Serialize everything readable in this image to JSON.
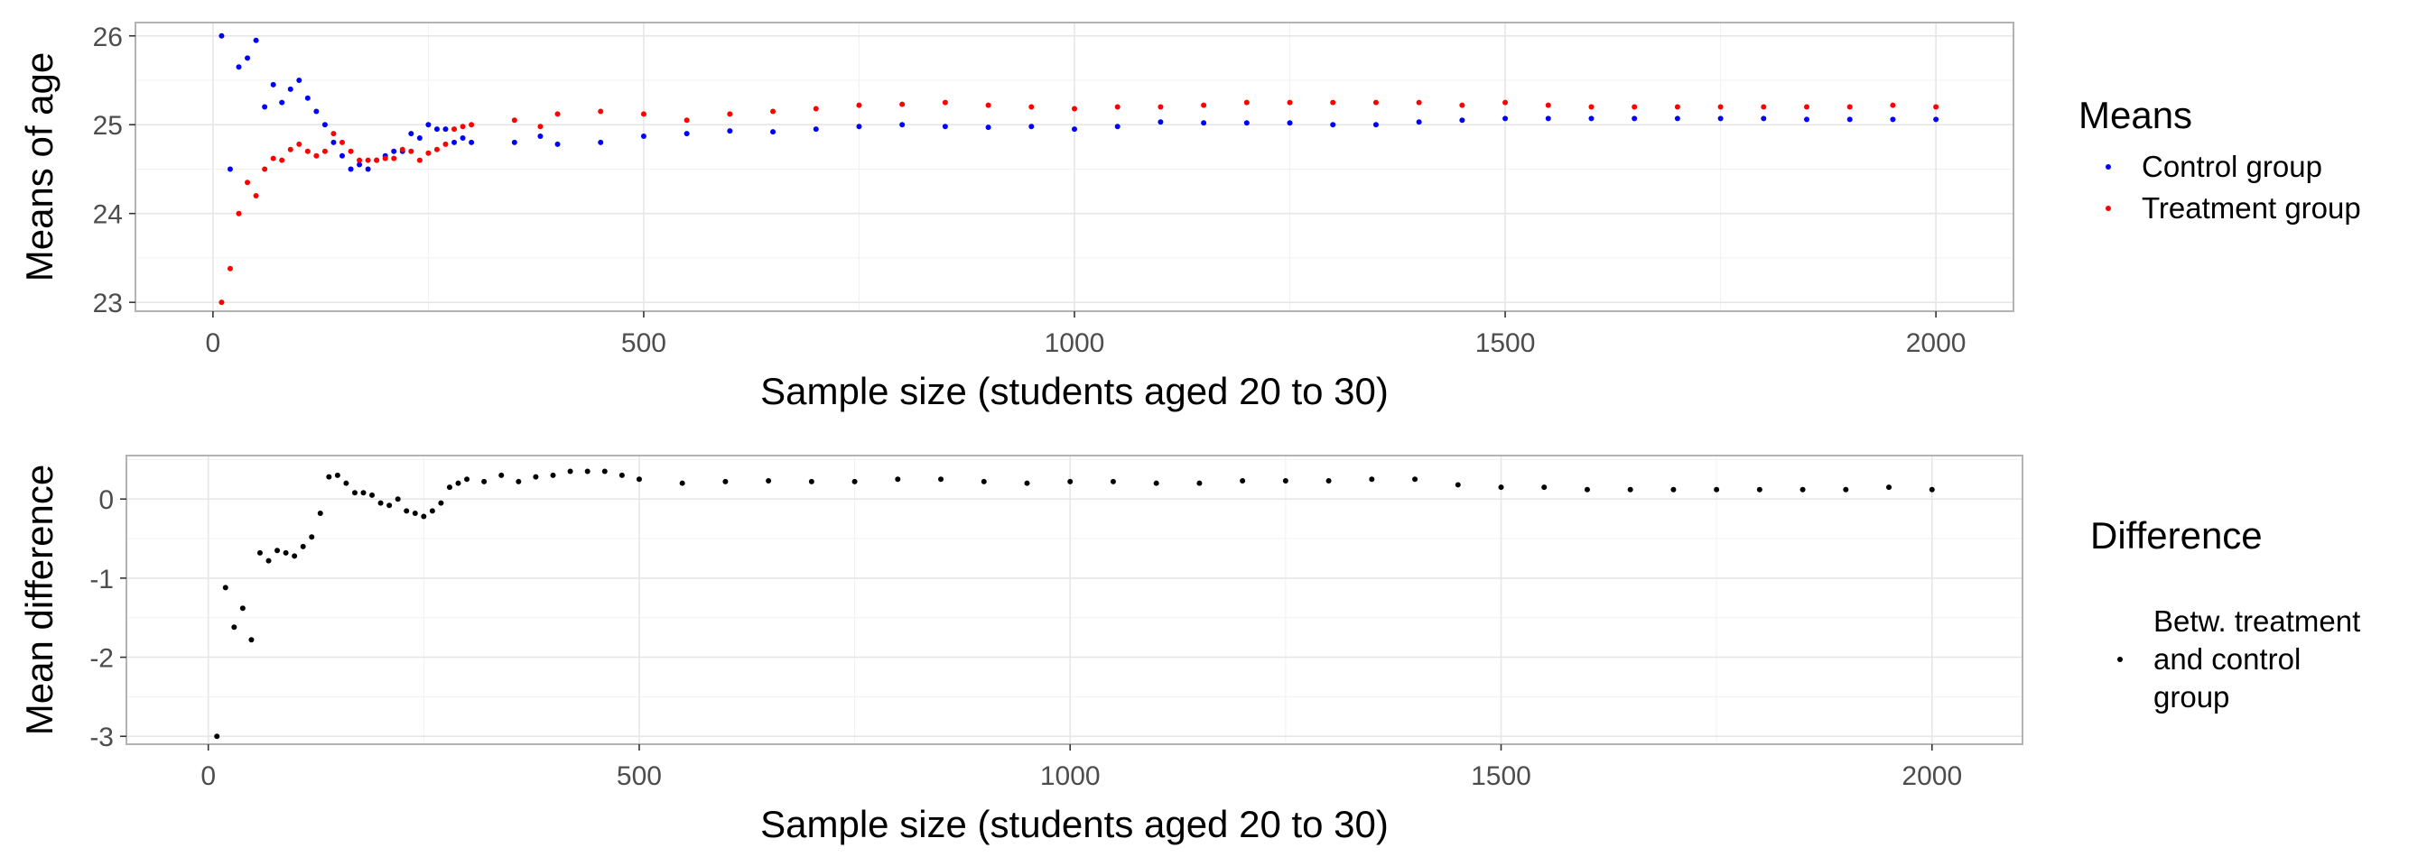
{
  "chart_data": [
    {
      "type": "scatter",
      "title": "",
      "xlabel": "Sample size (students aged 20 to 30)",
      "ylabel": "Means of age",
      "xlim": [
        -90,
        2090
      ],
      "ylim": [
        22.9,
        26.15
      ],
      "x_ticks": [
        0,
        500,
        1000,
        1500,
        2000
      ],
      "y_ticks": [
        23,
        24,
        25,
        26
      ],
      "grid": true,
      "legend_title": "Means",
      "legend_position": "right",
      "series": [
        {
          "name": "Control group",
          "color": "#0000ff",
          "points": [
            [
              10,
              26.0
            ],
            [
              20,
              24.5
            ],
            [
              30,
              25.65
            ],
            [
              40,
              25.75
            ],
            [
              50,
              25.95
            ],
            [
              60,
              25.2
            ],
            [
              70,
              25.45
            ],
            [
              80,
              25.25
            ],
            [
              90,
              25.4
            ],
            [
              100,
              25.5
            ],
            [
              110,
              25.3
            ],
            [
              120,
              25.15
            ],
            [
              130,
              25.0
            ],
            [
              140,
              24.8
            ],
            [
              150,
              24.65
            ],
            [
              160,
              24.5
            ],
            [
              170,
              24.55
            ],
            [
              180,
              24.5
            ],
            [
              190,
              24.6
            ],
            [
              200,
              24.65
            ],
            [
              210,
              24.7
            ],
            [
              220,
              24.7
            ],
            [
              230,
              24.9
            ],
            [
              240,
              24.85
            ],
            [
              250,
              25.0
            ],
            [
              260,
              24.95
            ],
            [
              270,
              24.95
            ],
            [
              280,
              24.8
            ],
            [
              290,
              24.85
            ],
            [
              300,
              24.8
            ],
            [
              350,
              24.8
            ],
            [
              380,
              24.87
            ],
            [
              400,
              24.78
            ],
            [
              450,
              24.8
            ],
            [
              500,
              24.87
            ],
            [
              550,
              24.9
            ],
            [
              600,
              24.93
            ],
            [
              650,
              24.92
            ],
            [
              700,
              24.95
            ],
            [
              750,
              24.98
            ],
            [
              800,
              25.0
            ],
            [
              850,
              24.98
            ],
            [
              900,
              24.97
            ],
            [
              950,
              24.98
            ],
            [
              1000,
              24.95
            ],
            [
              1050,
              24.98
            ],
            [
              1100,
              25.03
            ],
            [
              1150,
              25.02
            ],
            [
              1200,
              25.02
            ],
            [
              1250,
              25.02
            ],
            [
              1300,
              25.0
            ],
            [
              1350,
              25.0
            ],
            [
              1400,
              25.03
            ],
            [
              1450,
              25.05
            ],
            [
              1500,
              25.07
            ],
            [
              1550,
              25.07
            ],
            [
              1600,
              25.07
            ],
            [
              1650,
              25.07
            ],
            [
              1700,
              25.07
            ],
            [
              1750,
              25.07
            ],
            [
              1800,
              25.07
            ],
            [
              1850,
              25.06
            ],
            [
              1900,
              25.06
            ],
            [
              1950,
              25.06
            ],
            [
              2000,
              25.06
            ]
          ]
        },
        {
          "name": "Treatment group",
          "color": "#ff0000",
          "points": [
            [
              10,
              23.0
            ],
            [
              20,
              23.38
            ],
            [
              30,
              24.0
            ],
            [
              40,
              24.35
            ],
            [
              50,
              24.2
            ],
            [
              60,
              24.5
            ],
            [
              70,
              24.62
            ],
            [
              80,
              24.6
            ],
            [
              90,
              24.72
            ],
            [
              100,
              24.78
            ],
            [
              110,
              24.7
            ],
            [
              120,
              24.65
            ],
            [
              130,
              24.7
            ],
            [
              140,
              24.9
            ],
            [
              150,
              24.8
            ],
            [
              160,
              24.7
            ],
            [
              170,
              24.6
            ],
            [
              180,
              24.6
            ],
            [
              190,
              24.6
            ],
            [
              200,
              24.62
            ],
            [
              210,
              24.62
            ],
            [
              220,
              24.72
            ],
            [
              230,
              24.7
            ],
            [
              240,
              24.6
            ],
            [
              250,
              24.68
            ],
            [
              260,
              24.72
            ],
            [
              270,
              24.78
            ],
            [
              280,
              24.95
            ],
            [
              290,
              24.98
            ],
            [
              300,
              25.0
            ],
            [
              350,
              25.05
            ],
            [
              380,
              24.98
            ],
            [
              400,
              25.12
            ],
            [
              450,
              25.15
            ],
            [
              500,
              25.12
            ],
            [
              550,
              25.05
            ],
            [
              600,
              25.12
            ],
            [
              650,
              25.15
            ],
            [
              700,
              25.18
            ],
            [
              750,
              25.22
            ],
            [
              800,
              25.23
            ],
            [
              850,
              25.25
            ],
            [
              900,
              25.22
            ],
            [
              950,
              25.2
            ],
            [
              1000,
              25.18
            ],
            [
              1050,
              25.2
            ],
            [
              1100,
              25.2
            ],
            [
              1150,
              25.22
            ],
            [
              1200,
              25.25
            ],
            [
              1250,
              25.25
            ],
            [
              1300,
              25.25
            ],
            [
              1350,
              25.25
            ],
            [
              1400,
              25.25
            ],
            [
              1450,
              25.22
            ],
            [
              1500,
              25.25
            ],
            [
              1550,
              25.22
            ],
            [
              1600,
              25.2
            ],
            [
              1650,
              25.2
            ],
            [
              1700,
              25.2
            ],
            [
              1750,
              25.2
            ],
            [
              1800,
              25.2
            ],
            [
              1850,
              25.2
            ],
            [
              1900,
              25.2
            ],
            [
              1950,
              25.22
            ],
            [
              2000,
              25.2
            ]
          ]
        }
      ]
    },
    {
      "type": "scatter",
      "title": "",
      "xlabel": "Sample size (students aged 20 to 30)",
      "ylabel": "Mean difference",
      "xlim": [
        -95,
        2105
      ],
      "ylim": [
        -3.1,
        0.55
      ],
      "x_ticks": [
        0,
        500,
        1000,
        1500,
        2000
      ],
      "y_ticks": [
        -3,
        -2,
        -1,
        0
      ],
      "grid": true,
      "legend_title": "Difference",
      "legend_position": "right",
      "series": [
        {
          "name": "Betw. treatment and control group",
          "legend_lines": [
            "Betw. treatment",
            "and control",
            "group"
          ],
          "color": "#000000",
          "points": [
            [
              10,
              -3.0
            ],
            [
              20,
              -1.12
            ],
            [
              30,
              -1.62
            ],
            [
              40,
              -1.38
            ],
            [
              50,
              -1.78
            ],
            [
              60,
              -0.68
            ],
            [
              70,
              -0.78
            ],
            [
              80,
              -0.65
            ],
            [
              90,
              -0.68
            ],
            [
              100,
              -0.72
            ],
            [
              110,
              -0.6
            ],
            [
              120,
              -0.48
            ],
            [
              130,
              -0.18
            ],
            [
              140,
              0.28
            ],
            [
              150,
              0.3
            ],
            [
              160,
              0.2
            ],
            [
              170,
              0.08
            ],
            [
              180,
              0.08
            ],
            [
              190,
              0.05
            ],
            [
              200,
              -0.05
            ],
            [
              210,
              -0.08
            ],
            [
              220,
              0.0
            ],
            [
              230,
              -0.15
            ],
            [
              240,
              -0.18
            ],
            [
              250,
              -0.22
            ],
            [
              260,
              -0.15
            ],
            [
              270,
              -0.05
            ],
            [
              280,
              0.15
            ],
            [
              290,
              0.2
            ],
            [
              300,
              0.25
            ],
            [
              320,
              0.22
            ],
            [
              340,
              0.3
            ],
            [
              360,
              0.22
            ],
            [
              380,
              0.28
            ],
            [
              400,
              0.3
            ],
            [
              420,
              0.35
            ],
            [
              440,
              0.35
            ],
            [
              460,
              0.35
            ],
            [
              480,
              0.3
            ],
            [
              500,
              0.25
            ],
            [
              550,
              0.2
            ],
            [
              600,
              0.22
            ],
            [
              650,
              0.23
            ],
            [
              700,
              0.22
            ],
            [
              750,
              0.22
            ],
            [
              800,
              0.25
            ],
            [
              850,
              0.25
            ],
            [
              900,
              0.22
            ],
            [
              950,
              0.2
            ],
            [
              1000,
              0.22
            ],
            [
              1050,
              0.22
            ],
            [
              1100,
              0.2
            ],
            [
              1150,
              0.2
            ],
            [
              1200,
              0.23
            ],
            [
              1250,
              0.23
            ],
            [
              1300,
              0.23
            ],
            [
              1350,
              0.25
            ],
            [
              1400,
              0.25
            ],
            [
              1450,
              0.18
            ],
            [
              1500,
              0.15
            ],
            [
              1550,
              0.15
            ],
            [
              1600,
              0.12
            ],
            [
              1650,
              0.12
            ],
            [
              1700,
              0.12
            ],
            [
              1750,
              0.12
            ],
            [
              1800,
              0.12
            ],
            [
              1850,
              0.12
            ],
            [
              1900,
              0.12
            ],
            [
              1950,
              0.15
            ],
            [
              2000,
              0.12
            ]
          ]
        }
      ]
    }
  ]
}
